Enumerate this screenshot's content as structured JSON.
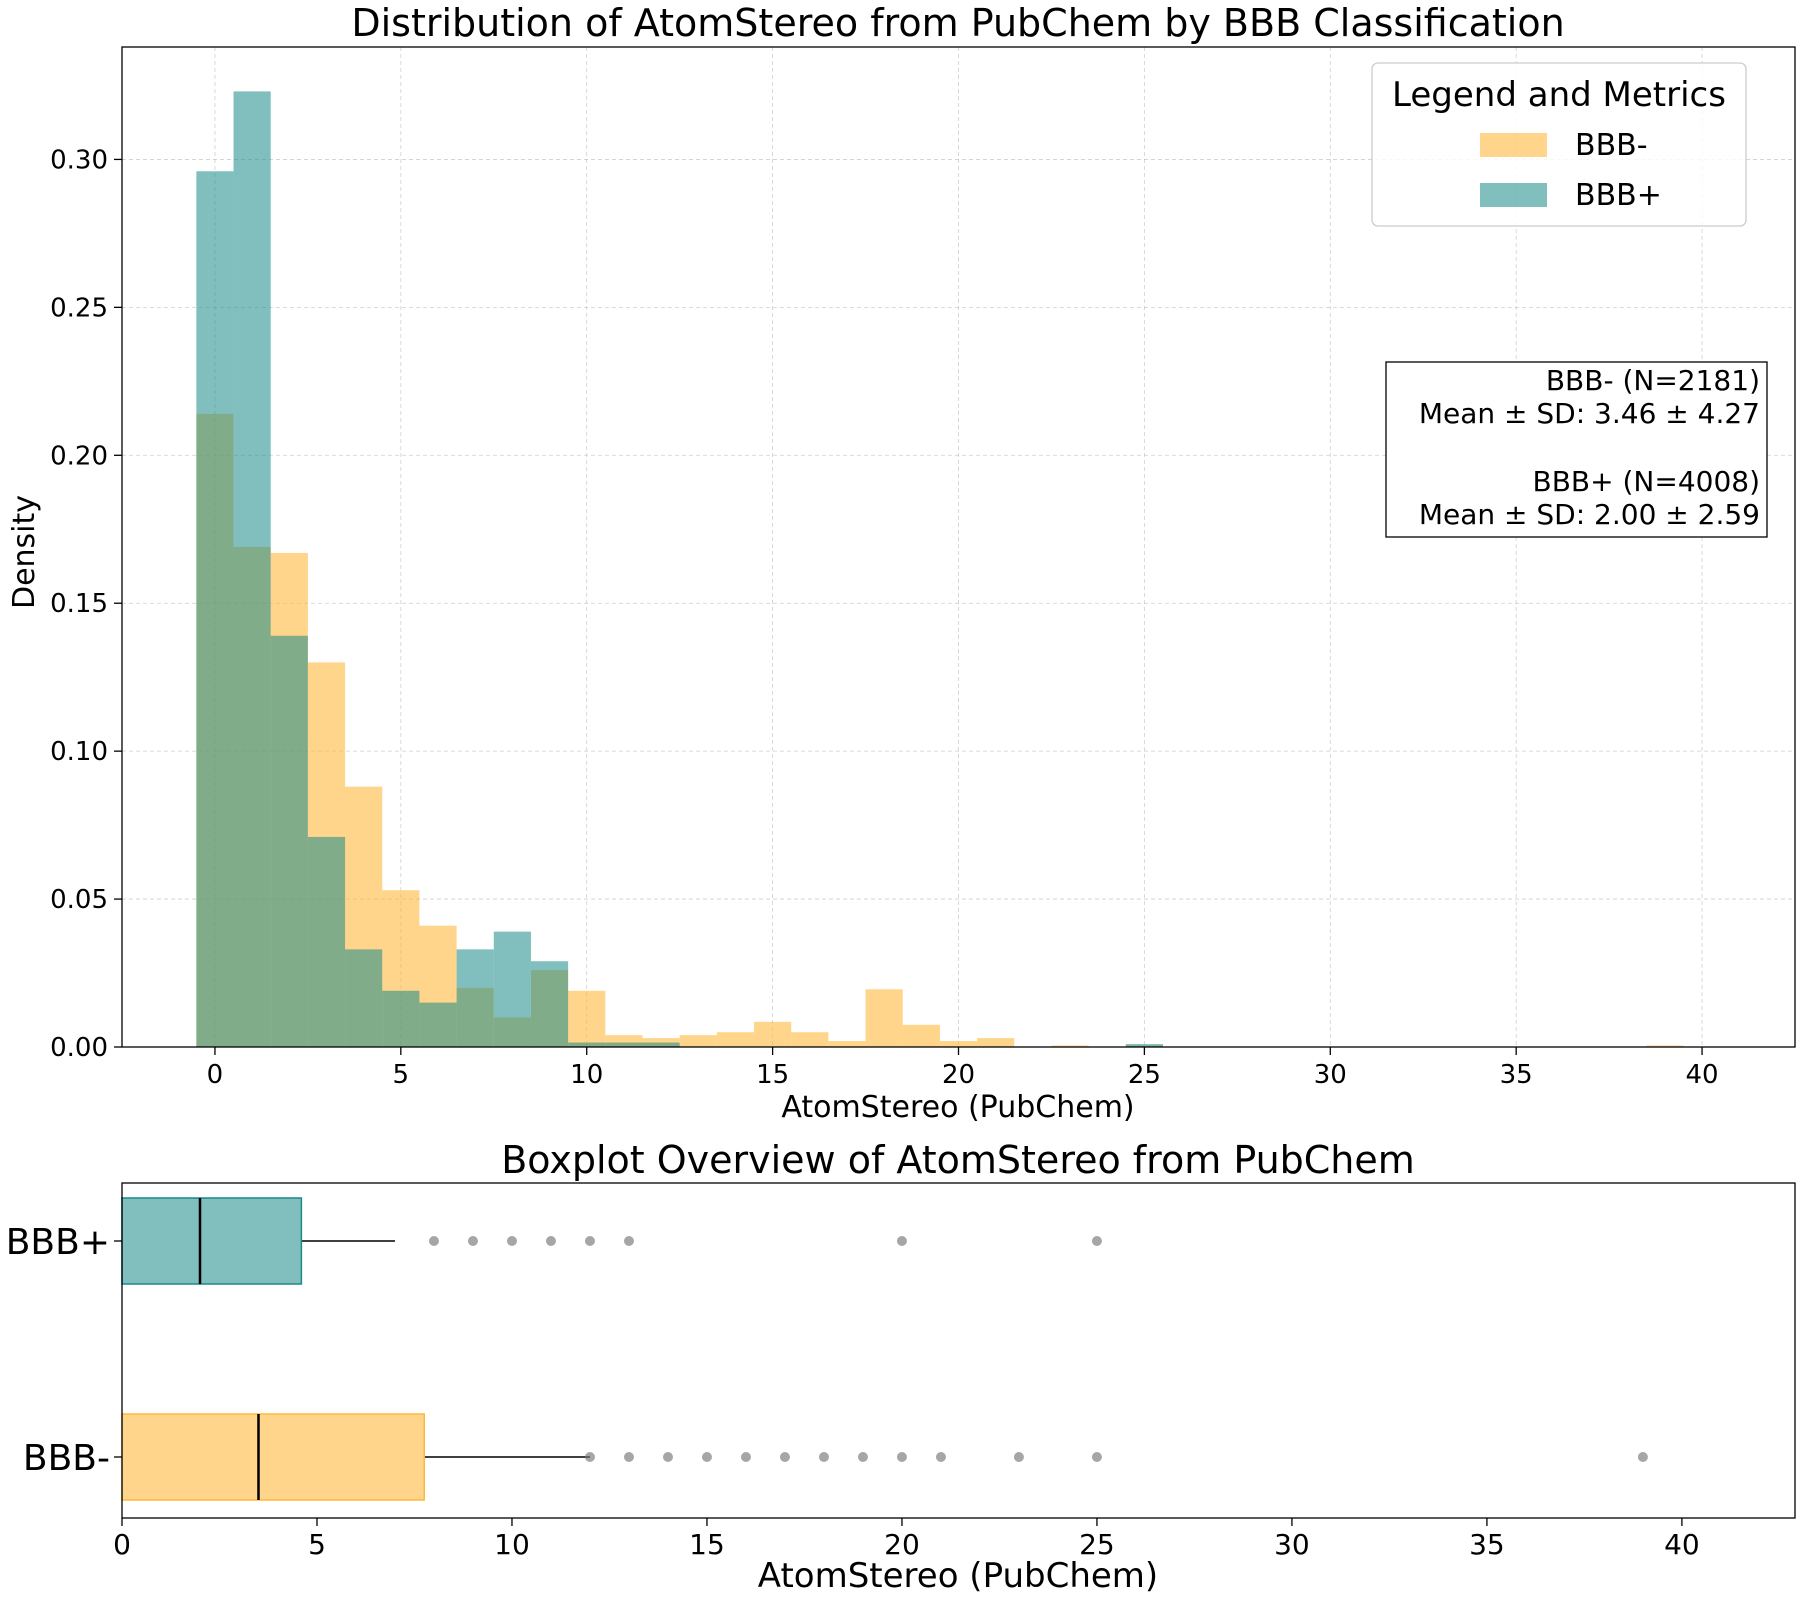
{
  "chart_data": [
    {
      "type": "histogram",
      "title": "Distribution of AtomStereo from PubChem by BBB Classification",
      "xlabel": "AtomStereo (PubChem)",
      "ylabel": "Density",
      "xlim": [
        -2.5,
        42.5
      ],
      "ylim": [
        0,
        0.338
      ],
      "xticks": [
        0,
        5,
        10,
        15,
        20,
        25,
        30,
        35,
        40
      ],
      "xtick_labels": [
        "0",
        "5",
        "10",
        "15",
        "20",
        "25",
        "30",
        "35",
        "40"
      ],
      "yticks": [
        0,
        0.05,
        0.1,
        0.15,
        0.2,
        0.25,
        0.3
      ],
      "ytick_labels": [
        "0.00",
        "0.05",
        "0.10",
        "0.15",
        "0.20",
        "0.25",
        "0.30"
      ],
      "grid": true,
      "bin_width": 1,
      "bin_centers": [
        0,
        1,
        2,
        3,
        4,
        5,
        6,
        7,
        8,
        9,
        10,
        11,
        12,
        13,
        14,
        15,
        16,
        17,
        18,
        19,
        20,
        21,
        22,
        23,
        24,
        25,
        26,
        27,
        28,
        29,
        30,
        31,
        32,
        33,
        34,
        35,
        36,
        37,
        38,
        39
      ],
      "series": [
        {
          "name": "BBB-",
          "color": "#FDB93C",
          "values": [
            0.214,
            0.169,
            0.167,
            0.13,
            0.088,
            0.053,
            0.041,
            0.02,
            0.01,
            0.026,
            0.019,
            0.004,
            0.003,
            0.004,
            0.005,
            0.0085,
            0.005,
            0.002,
            0.0195,
            0.0075,
            0.002,
            0.003,
            0,
            0.0005,
            0,
            0.0005,
            0,
            0,
            0,
            0,
            0,
            0,
            0,
            0,
            0,
            0,
            0,
            0,
            0,
            0.0005
          ]
        },
        {
          "name": "BBB+",
          "color": "#1A8A8A",
          "values": [
            0.296,
            0.323,
            0.139,
            0.071,
            0.033,
            0.019,
            0.015,
            0.033,
            0.039,
            0.029,
            0.0015,
            0.0015,
            0.0015,
            0,
            0,
            0,
            0,
            0,
            0,
            0,
            0,
            0,
            0,
            0,
            0,
            0.001,
            0,
            0,
            0,
            0,
            0,
            0,
            0,
            0,
            0,
            0,
            0,
            0,
            0,
            0
          ]
        }
      ],
      "legend": {
        "title": "Legend and Metrics",
        "position": "top-right",
        "entries": [
          "BBB-",
          "BBB+"
        ]
      },
      "metrics": {
        "bbb_neg_n": "BBB- (N=2181)",
        "bbb_neg_stats": "Mean ± SD: 3.46 ± 4.27",
        "bbb_pos_n": "BBB+ (N=4008)",
        "bbb_pos_stats": "Mean ± SD: 2.00 ± 2.59"
      }
    },
    {
      "type": "boxplot",
      "title": "Boxplot Overview of AtomStereo from PubChem",
      "xlabel": "AtomStereo (PubChem)",
      "xlim": [
        0,
        42.9
      ],
      "xticks": [
        0,
        5,
        10,
        15,
        20,
        25,
        30,
        35,
        40
      ],
      "xtick_labels": [
        "0",
        "5",
        "10",
        "15",
        "20",
        "25",
        "30",
        "35",
        "40"
      ],
      "categories": [
        "BBB+",
        "BBB-"
      ],
      "series": [
        {
          "name": "BBB+",
          "color": "#1A8A8A",
          "q1": 0,
          "median": 2,
          "q3": 4.6,
          "whisker_low": 0,
          "whisker_high": 7,
          "outliers": [
            8,
            9,
            10,
            11,
            12,
            13,
            20,
            25
          ]
        },
        {
          "name": "BBB-",
          "color": "#FDB93C",
          "q1": 0,
          "median": 3.5,
          "q3": 7.75,
          "whisker_low": 0,
          "whisker_high": 12,
          "outliers": [
            12,
            13,
            14,
            15,
            16,
            17,
            18,
            19,
            20,
            21,
            23,
            25,
            39
          ]
        }
      ]
    }
  ]
}
